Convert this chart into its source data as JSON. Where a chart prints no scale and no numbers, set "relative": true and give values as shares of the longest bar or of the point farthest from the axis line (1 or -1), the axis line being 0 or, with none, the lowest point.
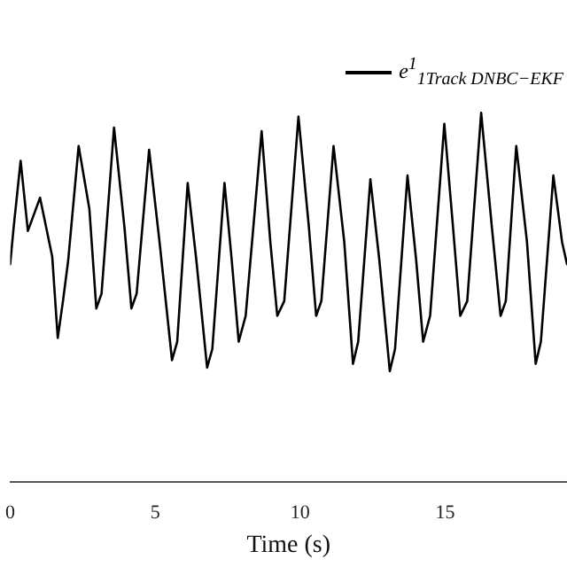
{
  "chart_data": {
    "type": "line",
    "xlabel": "Time (s)",
    "relative": true,
    "legend": "top right",
    "grid": false,
    "marker": "none",
    "line_style": "solid",
    "xlim": [
      0,
      19.2
    ],
    "xticks": [
      0,
      5,
      10,
      15
    ],
    "series": [
      {
        "name": "e$^{1}$$_{1Track DNBC−EKF}$",
        "color": "#000000",
        "x": [
          0,
          0.12,
          0.36,
          0.61,
          1.03,
          1.45,
          1.64,
          1.82,
          2.0,
          2.36,
          2.73,
          2.97,
          3.15,
          3.58,
          3.94,
          4.18,
          4.36,
          4.79,
          5.15,
          5.58,
          5.76,
          6.12,
          6.42,
          6.79,
          6.97,
          7.39,
          7.64,
          7.88,
          8.12,
          8.67,
          8.97,
          9.21,
          9.45,
          9.94,
          10.3,
          10.55,
          10.73,
          11.15,
          11.52,
          11.82,
          12.0,
          12.42,
          12.73,
          13.09,
          13.27,
          13.7,
          14.0,
          14.24,
          14.48,
          14.97,
          15.27,
          15.52,
          15.76,
          16.24,
          16.61,
          16.91,
          17.09,
          17.45,
          17.82,
          18.12,
          18.3,
          18.73,
          19.03,
          19.2
        ],
        "values": [
          0.59,
          0.69,
          0.87,
          0.68,
          0.77,
          0.61,
          0.39,
          0.49,
          0.6,
          0.91,
          0.74,
          0.47,
          0.51,
          0.96,
          0.69,
          0.47,
          0.51,
          0.9,
          0.65,
          0.33,
          0.38,
          0.81,
          0.6,
          0.31,
          0.36,
          0.81,
          0.6,
          0.38,
          0.45,
          0.95,
          0.65,
          0.45,
          0.49,
          0.99,
          0.69,
          0.45,
          0.49,
          0.91,
          0.65,
          0.32,
          0.38,
          0.82,
          0.6,
          0.3,
          0.36,
          0.83,
          0.6,
          0.38,
          0.45,
          0.97,
          0.69,
          0.45,
          0.49,
          1.0,
          0.69,
          0.45,
          0.49,
          0.91,
          0.65,
          0.32,
          0.38,
          0.83,
          0.65,
          0.59
        ]
      }
    ]
  }
}
